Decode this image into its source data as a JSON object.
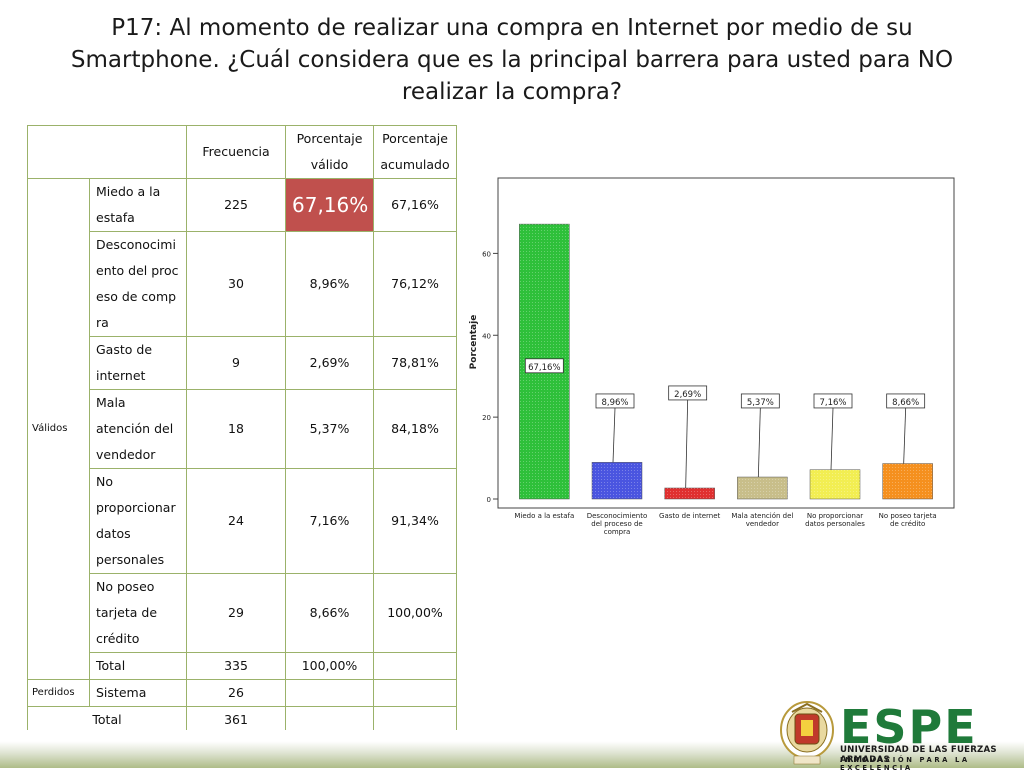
{
  "slide": {
    "title": "P17: Al momento de realizar una compra en Internet por medio de su Smartphone.  ¿Cuál considera que es la principal barrera para usted para NO realizar la compra?"
  },
  "table": {
    "headers": [
      "Frecuencia",
      "Porcentaje válido",
      "Porcentaje acumulado"
    ],
    "group_valid": "Válidos",
    "group_lost": "Perdidos",
    "rows": [
      {
        "label": "Miedo a la estafa",
        "freq": "225",
        "pct": "67,16%",
        "cum": "67,16%"
      },
      {
        "label": "Desconocimiento del proceso de compra",
        "freq": "30",
        "pct": "8,96%",
        "cum": "76,12%"
      },
      {
        "label": "Gasto de internet",
        "freq": "9",
        "pct": "2,69%",
        "cum": "78,81%"
      },
      {
        "label": "Mala atención del vendedor",
        "freq": "18",
        "pct": "5,37%",
        "cum": "84,18%"
      },
      {
        "label": "No proporcionar datos personales",
        "freq": "24",
        "pct": "7,16%",
        "cum": "91,34%"
      },
      {
        "label": "No poseo tarjeta de crédito",
        "freq": "29",
        "pct": "8,66%",
        "cum": "100,00%"
      }
    ],
    "total_valid": {
      "label": "Total",
      "freq": "335",
      "pct": "100,00%"
    },
    "lost": {
      "label": "Sistema",
      "freq": "26"
    },
    "grand_total": {
      "label": "Total",
      "freq": "361"
    }
  },
  "chart_data": {
    "type": "bar",
    "ylabel": "Porcentaje",
    "xlabel": "",
    "ylim": [
      0,
      75
    ],
    "yticks": [
      0,
      20,
      40,
      60
    ],
    "grid": false,
    "categories": [
      "Miedo a la estafa",
      "Desconocimiento del proceso de compra",
      "Gasto de internet",
      "Mala atención del vendedor",
      "No proporcionar datos personales",
      "No poseo tarjeta de crédito"
    ],
    "values": [
      67.16,
      8.96,
      2.69,
      5.37,
      7.16,
      8.66
    ],
    "data_labels": [
      "67,16%",
      "8,96%",
      "2,69%",
      "5,37%",
      "7,16%",
      "8,66%"
    ],
    "colors": [
      "#2ec03a",
      "#4a55e0",
      "#e03030",
      "#c8be8a",
      "#f2ee52",
      "#f5901e"
    ]
  },
  "branding": {
    "wordmark": "ESPE",
    "university": "UNIVERSIDAD DE LAS FUERZAS ARMADAS",
    "motto": "INNOVACIÓN PARA LA EXCELENCIA",
    "green": "#1f7a3a"
  }
}
